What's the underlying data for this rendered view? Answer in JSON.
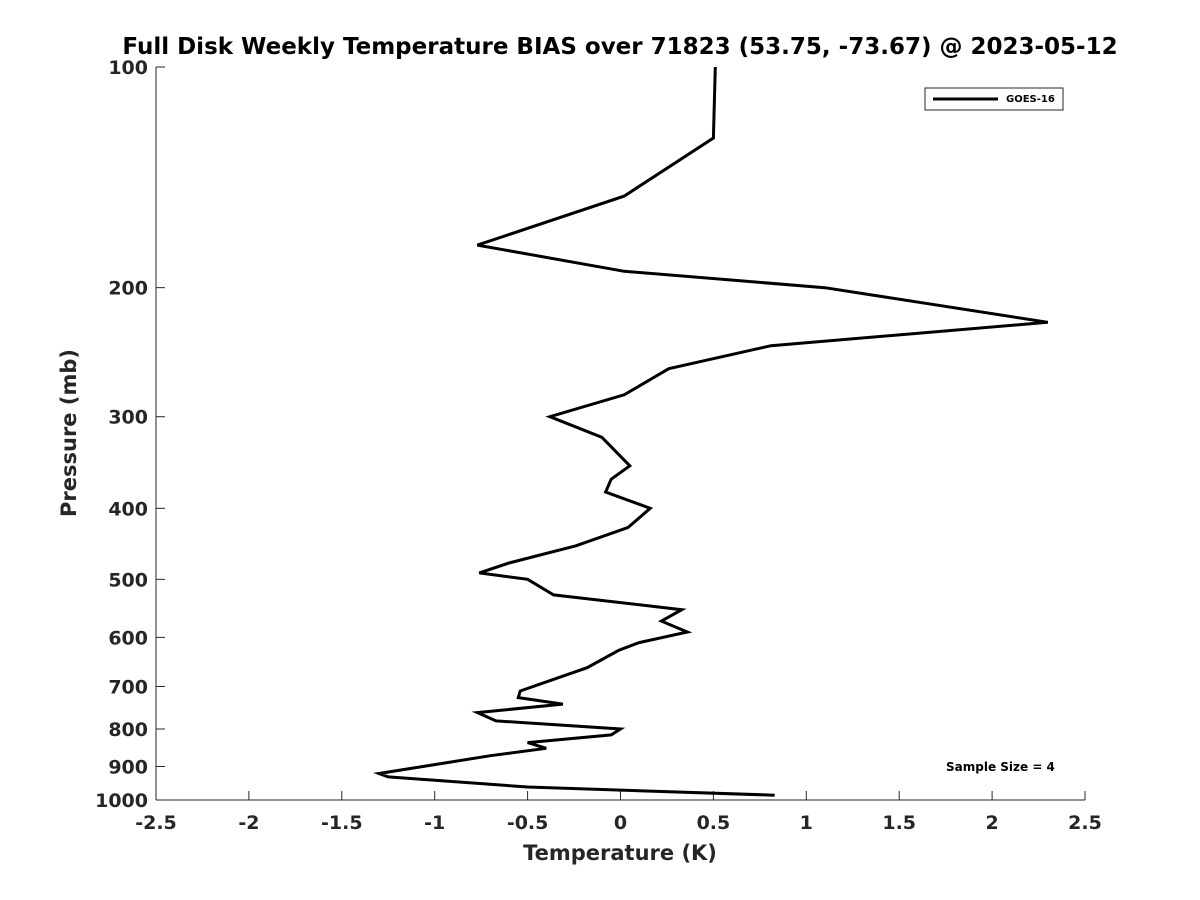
{
  "chart_data": {
    "type": "line",
    "title": "Full Disk Weekly Temperature BIAS over 71823 (53.75, -73.67) @ 2023-05-12",
    "xlabel": "Temperature (K)",
    "ylabel": "Pressure (mb)",
    "xlim": [
      -2.5,
      2.5
    ],
    "ylim": [
      1000,
      100
    ],
    "y_scale": "log",
    "y_reversed": true,
    "xticks": [
      -2.5,
      -2,
      -1.5,
      -1,
      -0.5,
      0,
      0.5,
      1,
      1.5,
      2,
      2.5
    ],
    "xtick_labels": [
      "-2.5",
      "-2",
      "-1.5",
      "-1",
      "-0.5",
      "0",
      "0.5",
      "1",
      "1.5",
      "2",
      "2.5"
    ],
    "yticks": [
      100,
      200,
      300,
      400,
      500,
      600,
      700,
      800,
      900,
      1000
    ],
    "ytick_labels": [
      "100",
      "200",
      "300",
      "400",
      "500",
      "600",
      "700",
      "800",
      "900",
      "1000"
    ],
    "grid": false,
    "legend_position": "top-right",
    "annotation": "Sample Size = 4",
    "series": [
      {
        "name": "GOES-16",
        "color": "#000000",
        "points": [
          [
            0.51,
            100
          ],
          [
            0.5,
            125
          ],
          [
            0.02,
            150
          ],
          [
            -0.77,
            175
          ],
          [
            0.02,
            190
          ],
          [
            1.1,
            200
          ],
          [
            2.3,
            223
          ],
          [
            0.81,
            240
          ],
          [
            0.26,
            258
          ],
          [
            0.02,
            280
          ],
          [
            -0.38,
            300
          ],
          [
            -0.1,
            320
          ],
          [
            0.05,
            350
          ],
          [
            -0.05,
            365
          ],
          [
            -0.08,
            380
          ],
          [
            0.16,
            400
          ],
          [
            0.04,
            425
          ],
          [
            -0.24,
            450
          ],
          [
            -0.6,
            475
          ],
          [
            -0.76,
            490
          ],
          [
            -0.5,
            500
          ],
          [
            -0.36,
            525
          ],
          [
            0.33,
            550
          ],
          [
            0.22,
            570
          ],
          [
            0.36,
            590
          ],
          [
            0.1,
            610
          ],
          [
            -0.01,
            625
          ],
          [
            -0.18,
            660
          ],
          [
            -0.4,
            690
          ],
          [
            -0.54,
            710
          ],
          [
            -0.55,
            725
          ],
          [
            -0.31,
            740
          ],
          [
            -0.77,
            760
          ],
          [
            -0.67,
            780
          ],
          [
            0.0,
            800
          ],
          [
            -0.05,
            815
          ],
          [
            -0.5,
            835
          ],
          [
            -0.4,
            850
          ],
          [
            -0.7,
            870
          ],
          [
            -1.3,
            920
          ],
          [
            -1.25,
            930
          ],
          [
            -0.5,
            960
          ],
          [
            0.83,
            985
          ]
        ]
      }
    ]
  }
}
